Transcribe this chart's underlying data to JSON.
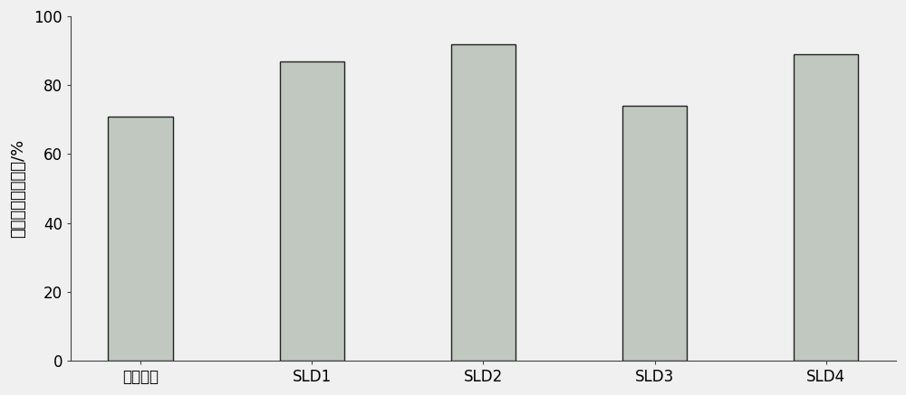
{
  "categories": [
    "骨化三醇",
    "SLD1",
    "SLD2",
    "SLD3",
    "SLD4"
  ],
  "values": [
    71,
    87,
    92,
    74,
    89
  ],
  "bar_color": "#c0c8c0",
  "bar_edge_color": "#222222",
  "bar_edge_width": 1.0,
  "bar_width": 0.38,
  "ylim": [
    0,
    100
  ],
  "yticks": [
    0,
    20,
    40,
    60,
    80,
    100
  ],
  "ylabel": "骨化三醇的保留率/%",
  "background_color": "#f0f0f0",
  "grid_color": "#cccccc",
  "tick_fontsize": 12,
  "ylabel_fontsize": 13
}
